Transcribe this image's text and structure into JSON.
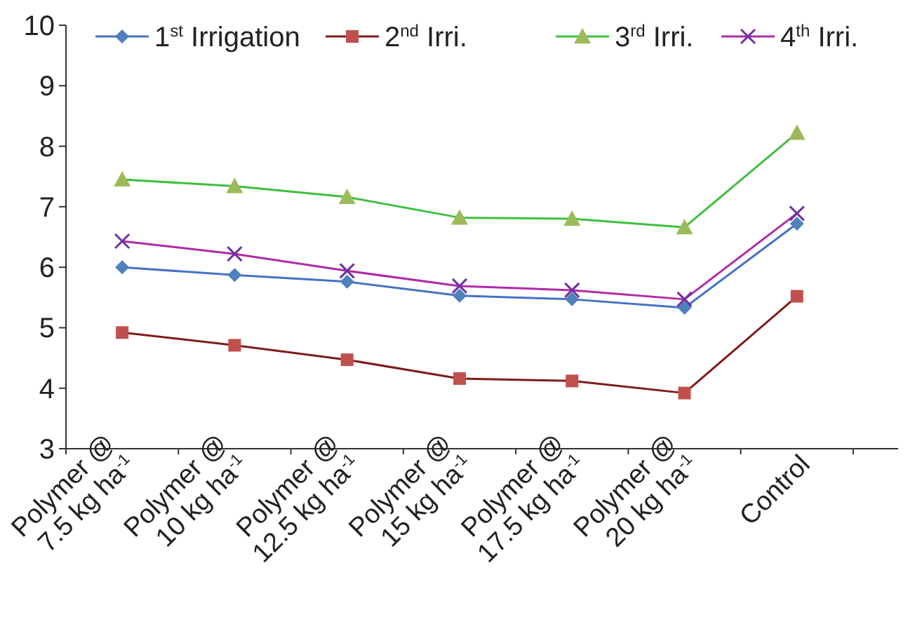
{
  "chart_data": {
    "type": "line",
    "categories": [
      "Polymer @\n7.5 kg ha$^{-1}$",
      "Polymer  @\n10 kg ha$^{-1}$",
      "Polymer  @\n12.5 kg ha$^{-1}$",
      "Polymer  @\n15 kg ha$^{-1}$",
      "Polymer  @\n17.5 kg ha$^{-1}$",
      "Polymer  @\n20 kg ha$^{-1}$",
      "Control"
    ],
    "series": [
      {
        "name": "1$^{st}$ Irrigation",
        "color": "#4472c4",
        "marker": "diamond",
        "values": [
          6.0,
          5.87,
          5.76,
          5.53,
          5.47,
          5.33,
          6.72
        ]
      },
      {
        "name": "2$^{nd}$ Irri.",
        "color": "#7f1b1b",
        "marker": "square",
        "values": [
          4.92,
          4.71,
          4.47,
          4.16,
          4.12,
          3.92,
          5.52
        ]
      },
      {
        "name": "3$^{rd}$ Irri.",
        "color": "#3fbf3f",
        "marker": "triangle",
        "values": [
          7.45,
          7.34,
          7.16,
          6.82,
          6.8,
          6.66,
          8.22
        ]
      },
      {
        "name": "4$^{th}$ Irri.",
        "color": "#b02aa8",
        "marker": "cross",
        "values": [
          6.43,
          6.22,
          5.94,
          5.69,
          5.62,
          5.47,
          6.89
        ]
      }
    ],
    "ylim": [
      3,
      10
    ],
    "yticks": [
      3,
      4,
      5,
      6,
      7,
      8,
      9,
      10
    ],
    "grid": false,
    "legend": "top",
    "line_style": "solid"
  }
}
